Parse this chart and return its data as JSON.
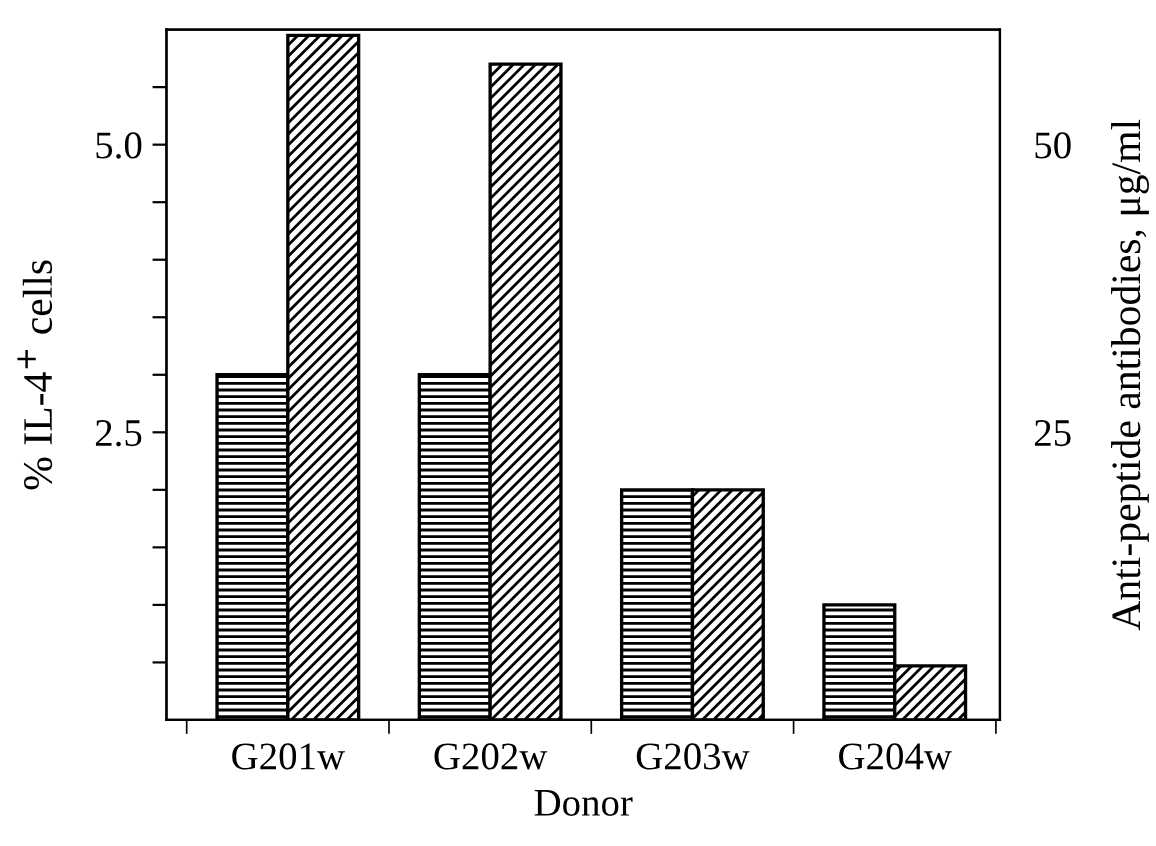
{
  "chart_data": {
    "type": "bar",
    "xlabel": "Donor",
    "ylabel": "% IL-4$^{+}$ cells",
    "y2label": "Anti-peptide antibodies, μg/ml",
    "categories": [
      "G201w",
      "G202w",
      "G203w",
      "G204w"
    ],
    "series": [
      {
        "color": "#000000",
        "values": [
          3.0,
          3.0,
          2.0,
          1.0
        ]
      },
      {
        "color": "#000000",
        "axis": "y2",
        "values": [
          59.5,
          57,
          20,
          4.7
        ]
      }
    ],
    "ylim": [
      0,
      6
    ],
    "yticks": [
      {
        "value": 0.5,
        "label": null
      },
      {
        "value": 1.0,
        "label": null
      },
      {
        "value": 1.5,
        "label": null
      },
      {
        "value": 2.0,
        "label": null
      },
      {
        "value": 2.5,
        "label": "2.5"
      },
      {
        "value": 3.0,
        "label": null
      },
      {
        "value": 3.5,
        "label": null
      },
      {
        "value": 4.0,
        "label": null
      },
      {
        "value": 4.5,
        "label": null
      },
      {
        "value": 5.0,
        "label": "5.0"
      },
      {
        "value": 5.5,
        "label": null
      }
    ],
    "y2lim": [
      0,
      60
    ],
    "y2ticks": [
      25,
      50
    ],
    "grid": false
  }
}
